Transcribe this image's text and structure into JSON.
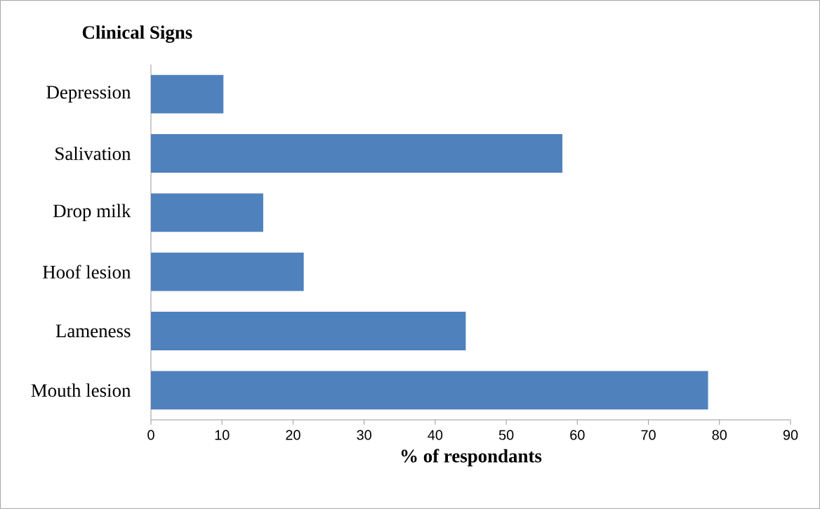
{
  "chart_data": {
    "type": "bar",
    "orientation": "horizontal",
    "title": "Clinical Signs",
    "xlabel": "% of respondants",
    "categories": [
      "Depression",
      "Salivation",
      "Drop milk",
      "Hoof lesion",
      "Lameness",
      "Mouth lesion"
    ],
    "values": [
      10.2,
      57.9,
      15.8,
      21.5,
      44.3,
      78.4
    ],
    "color": "#4f81bd",
    "xlim": [
      0,
      90
    ],
    "xticks": [
      0,
      10,
      20,
      30,
      40,
      50,
      60,
      70,
      80,
      90
    ]
  }
}
